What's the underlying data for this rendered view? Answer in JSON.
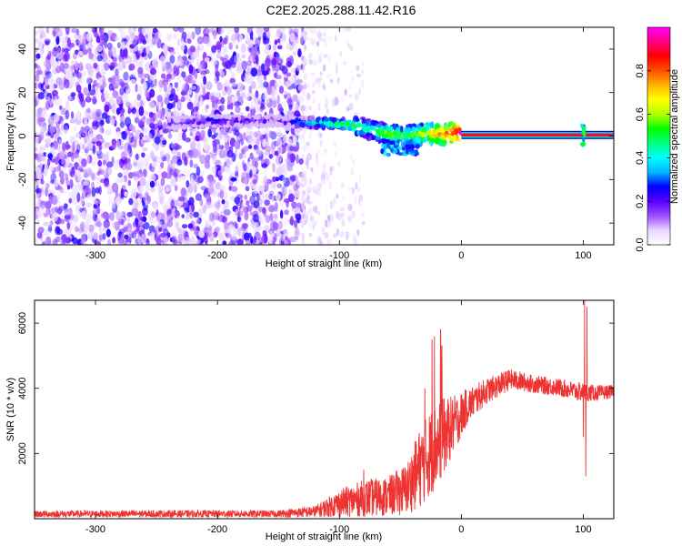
{
  "figure_title": "C2E2.2025.288.11.42.R16",
  "chart_data": [
    {
      "type": "heatmap",
      "name": "spectrogram",
      "xlabel": "Height of straight line (km)",
      "ylabel": "Frequency (Hz)",
      "xlim": [
        -350,
        125
      ],
      "ylim": [
        -50,
        50
      ],
      "xticks": [
        -300,
        -200,
        -100,
        0,
        100
      ],
      "yticks": [
        -40,
        -20,
        0,
        20,
        40
      ],
      "colorbar": {
        "label": "Normalized spectral amplitude",
        "range": [
          0,
          1
        ],
        "ticks": [
          0.0,
          0.2,
          0.4,
          0.6,
          0.8
        ],
        "colormap": [
          "#ffffff",
          "#e8d6ff",
          "#9b4dff",
          "#5b00ff",
          "#0000ff",
          "#00b4ff",
          "#00ffff",
          "#00ff80",
          "#00ff00",
          "#b4ff00",
          "#ffff00",
          "#ffb400",
          "#ff5000",
          "#ff0000",
          "#ff0080",
          "#ff00ff"
        ]
      },
      "features": {
        "noise_region_x": [
          -350,
          -130
        ],
        "sparse_noise_region_x": [
          -130,
          -80
        ],
        "carrier_line": {
          "frequency_hz": 0.5,
          "x_start": 0,
          "x_end": 125,
          "amplitude": 1.0
        },
        "carrier_track": [
          {
            "x": -240,
            "f": 6,
            "a": 0.25
          },
          {
            "x": -205,
            "f": 7,
            "a": 0.3
          },
          {
            "x": -150,
            "f": 7,
            "a": 0.2
          },
          {
            "x": -130,
            "f": 6,
            "a": 0.4
          },
          {
            "x": -110,
            "f": 6,
            "a": 0.5
          },
          {
            "x": -90,
            "f": 5,
            "a": 0.55
          },
          {
            "x": -75,
            "f": 3,
            "a": 0.5
          },
          {
            "x": -60,
            "f": 1,
            "a": 0.6
          },
          {
            "x": -45,
            "f": 0,
            "a": 0.55
          },
          {
            "x": -30,
            "f": 1,
            "a": 0.65
          },
          {
            "x": -15,
            "f": 1,
            "a": 0.8
          },
          {
            "x": -5,
            "f": 2,
            "a": 0.85
          },
          {
            "x": 0,
            "f": 1,
            "a": 0.95
          }
        ],
        "disturbance_at_x": 100
      }
    },
    {
      "type": "line",
      "name": "snr",
      "xlabel": "Height of straight line (km)",
      "ylabel": "SNR (10 * v/v)",
      "xlim": [
        -350,
        125
      ],
      "ylim": [
        0,
        6700
      ],
      "xticks": [
        -300,
        -200,
        -100,
        0,
        100
      ],
      "yticks": [
        2000,
        4000,
        6000
      ],
      "color": "#ee3333",
      "profile": [
        {
          "x": -350,
          "lo": 40,
          "hi": 250
        },
        {
          "x": -250,
          "lo": 40,
          "hi": 260
        },
        {
          "x": -150,
          "lo": 40,
          "hi": 260
        },
        {
          "x": -120,
          "lo": 40,
          "hi": 400
        },
        {
          "x": -100,
          "lo": 50,
          "hi": 900
        },
        {
          "x": -80,
          "lo": 60,
          "hi": 1200
        },
        {
          "x": -60,
          "lo": 80,
          "hi": 1300
        },
        {
          "x": -45,
          "lo": 120,
          "hi": 1700
        },
        {
          "x": -35,
          "lo": 300,
          "hi": 2700
        },
        {
          "x": -25,
          "lo": 700,
          "hi": 3400
        },
        {
          "x": -15,
          "lo": 1300,
          "hi": 3700
        },
        {
          "x": -5,
          "lo": 2100,
          "hi": 3800
        },
        {
          "x": 5,
          "lo": 2900,
          "hi": 4000
        },
        {
          "x": 20,
          "lo": 3500,
          "hi": 4300
        },
        {
          "x": 40,
          "lo": 3950,
          "hi": 4600
        },
        {
          "x": 60,
          "lo": 3850,
          "hi": 4400
        },
        {
          "x": 80,
          "lo": 3750,
          "hi": 4300
        },
        {
          "x": 95,
          "lo": 3600,
          "hi": 4200
        },
        {
          "x": 110,
          "lo": 3600,
          "hi": 4100
        },
        {
          "x": 125,
          "lo": 3700,
          "hi": 4100
        }
      ],
      "spikes": [
        {
          "x": -24,
          "y": 5500
        },
        {
          "x": -22,
          "y": 5600
        },
        {
          "x": -17,
          "y": 5800
        },
        {
          "x": -16,
          "y": 5300
        },
        {
          "x": -30,
          "y": 4000
        },
        {
          "x": -80,
          "y": 1500
        },
        {
          "x": 101,
          "y": 6700
        },
        {
          "x": 103,
          "y": 6500
        },
        {
          "x": 102,
          "y": 1300
        },
        {
          "x": 100,
          "y": 2500
        }
      ]
    }
  ]
}
